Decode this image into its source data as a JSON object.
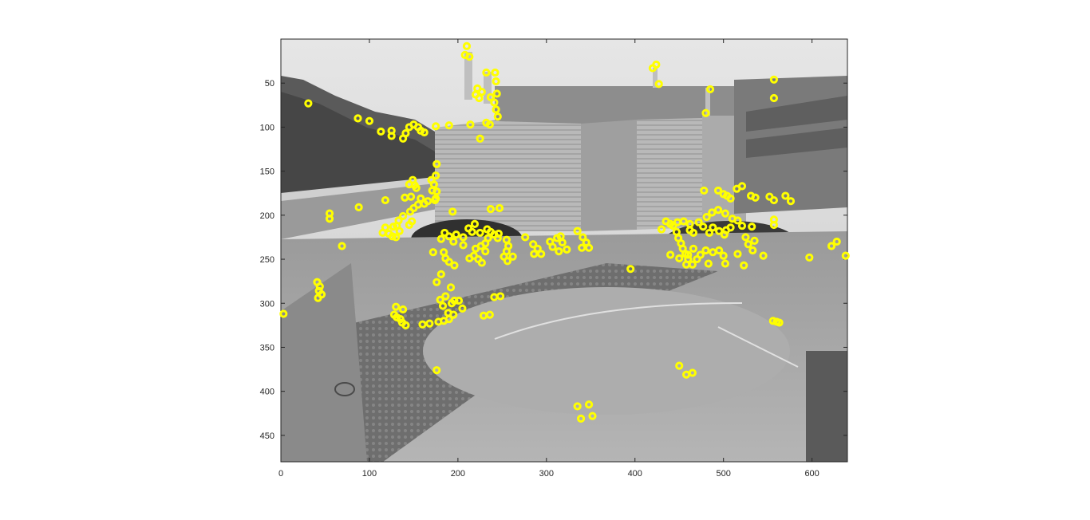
{
  "chart_data": {
    "type": "scatter",
    "title": "",
    "xlabel": "",
    "ylabel": "",
    "xlim": [
      0,
      640
    ],
    "ylim": [
      480,
      0
    ],
    "y_axis_reversed": true,
    "grid": false,
    "background": "grayscale camera image of a building facade, parking area and paved courtyard",
    "marker": {
      "shape": "circle-ring",
      "color": "#ffff00"
    },
    "x_ticks": [
      "0",
      "100",
      "200",
      "300",
      "400",
      "500",
      "600"
    ],
    "y_ticks": [
      "50",
      "100",
      "150",
      "200",
      "250",
      "300",
      "350",
      "400",
      "450"
    ],
    "points": [
      [
        31,
        73
      ],
      [
        87,
        90
      ],
      [
        100,
        93
      ],
      [
        113,
        105
      ],
      [
        125,
        104
      ],
      [
        125,
        110
      ],
      [
        138,
        113
      ],
      [
        141,
        107
      ],
      [
        145,
        100
      ],
      [
        150,
        97
      ],
      [
        155,
        100
      ],
      [
        158,
        104
      ],
      [
        162,
        106
      ],
      [
        175,
        99
      ],
      [
        190,
        98
      ],
      [
        210,
        8
      ],
      [
        208,
        18
      ],
      [
        213,
        20
      ],
      [
        232,
        38
      ],
      [
        242,
        38
      ],
      [
        222,
        56
      ],
      [
        220,
        63
      ],
      [
        227,
        60
      ],
      [
        224,
        67
      ],
      [
        237,
        66
      ],
      [
        244,
        62
      ],
      [
        243,
        48
      ],
      [
        241,
        72
      ],
      [
        243,
        80
      ],
      [
        245,
        88
      ],
      [
        236,
        97
      ],
      [
        214,
        97
      ],
      [
        232,
        95
      ],
      [
        225,
        113
      ],
      [
        176,
        142
      ],
      [
        175,
        155
      ],
      [
        170,
        160
      ],
      [
        173,
        165
      ],
      [
        176,
        173
      ],
      [
        175,
        181
      ],
      [
        171,
        172
      ],
      [
        149,
        160
      ],
      [
        145,
        165
      ],
      [
        151,
        166
      ],
      [
        153,
        169
      ],
      [
        140,
        180
      ],
      [
        147,
        179
      ],
      [
        158,
        181
      ],
      [
        166,
        184
      ],
      [
        162,
        187
      ],
      [
        155,
        188
      ],
      [
        150,
        192
      ],
      [
        146,
        196
      ],
      [
        138,
        201
      ],
      [
        133,
        206
      ],
      [
        131,
        212
      ],
      [
        127,
        213
      ],
      [
        118,
        214
      ],
      [
        115,
        220
      ],
      [
        122,
        221
      ],
      [
        126,
        224
      ],
      [
        130,
        225
      ],
      [
        134,
        218
      ],
      [
        118,
        183
      ],
      [
        88,
        191
      ],
      [
        55,
        198
      ],
      [
        55,
        204
      ],
      [
        69,
        235
      ],
      [
        145,
        211
      ],
      [
        148,
        207
      ],
      [
        174,
        183
      ],
      [
        194,
        196
      ],
      [
        181,
        227
      ],
      [
        185,
        220
      ],
      [
        190,
        224
      ],
      [
        198,
        222
      ],
      [
        206,
        225
      ],
      [
        212,
        215
      ],
      [
        219,
        210
      ],
      [
        216,
        219
      ],
      [
        225,
        220
      ],
      [
        233,
        216
      ],
      [
        237,
        219
      ],
      [
        241,
        222
      ],
      [
        246,
        221
      ],
      [
        234,
        226
      ],
      [
        231,
        232
      ],
      [
        226,
        235
      ],
      [
        220,
        238
      ],
      [
        218,
        246
      ],
      [
        223,
        250
      ],
      [
        227,
        254
      ],
      [
        213,
        249
      ],
      [
        206,
        234
      ],
      [
        195,
        230
      ],
      [
        184,
        242
      ],
      [
        186,
        249
      ],
      [
        190,
        253
      ],
      [
        196,
        257
      ],
      [
        172,
        242
      ],
      [
        181,
        267
      ],
      [
        231,
        241
      ],
      [
        245,
        226
      ],
      [
        255,
        228
      ],
      [
        257,
        235
      ],
      [
        255,
        241
      ],
      [
        252,
        247
      ],
      [
        256,
        252
      ],
      [
        262,
        247
      ],
      [
        276,
        225
      ],
      [
        285,
        233
      ],
      [
        290,
        238
      ],
      [
        286,
        244
      ],
      [
        294,
        244
      ],
      [
        304,
        230
      ],
      [
        307,
        236
      ],
      [
        312,
        226
      ],
      [
        316,
        224
      ],
      [
        318,
        231
      ],
      [
        323,
        239
      ],
      [
        314,
        241
      ],
      [
        335,
        218
      ],
      [
        341,
        225
      ],
      [
        345,
        231
      ],
      [
        340,
        237
      ],
      [
        348,
        237
      ],
      [
        237,
        193
      ],
      [
        247,
        192
      ],
      [
        176,
        276
      ],
      [
        192,
        282
      ],
      [
        186,
        292
      ],
      [
        180,
        296
      ],
      [
        183,
        303
      ],
      [
        193,
        300
      ],
      [
        196,
        297
      ],
      [
        201,
        297
      ],
      [
        205,
        306
      ],
      [
        189,
        311
      ],
      [
        195,
        313
      ],
      [
        190,
        318
      ],
      [
        184,
        320
      ],
      [
        178,
        321
      ],
      [
        168,
        323
      ],
      [
        160,
        324
      ],
      [
        141,
        325
      ],
      [
        137,
        322
      ],
      [
        135,
        318
      ],
      [
        131,
        316
      ],
      [
        128,
        313
      ],
      [
        138,
        307
      ],
      [
        130,
        304
      ],
      [
        241,
        293
      ],
      [
        248,
        292
      ],
      [
        229,
        314
      ],
      [
        236,
        313
      ],
      [
        176,
        376
      ],
      [
        3,
        312
      ],
      [
        41,
        276
      ],
      [
        44,
        281
      ],
      [
        43,
        286
      ],
      [
        46,
        290
      ],
      [
        42,
        294
      ],
      [
        395,
        261
      ],
      [
        420,
        33
      ],
      [
        424,
        29
      ],
      [
        427,
        51
      ],
      [
        485,
        57
      ],
      [
        480,
        84
      ],
      [
        557,
        46
      ],
      [
        557,
        67
      ],
      [
        478,
        172
      ],
      [
        494,
        172
      ],
      [
        500,
        176
      ],
      [
        504,
        178
      ],
      [
        508,
        181
      ],
      [
        515,
        170
      ],
      [
        521,
        167
      ],
      [
        531,
        178
      ],
      [
        536,
        180
      ],
      [
        552,
        179
      ],
      [
        557,
        183
      ],
      [
        570,
        178
      ],
      [
        576,
        184
      ],
      [
        557,
        205
      ],
      [
        557,
        211
      ],
      [
        481,
        202
      ],
      [
        487,
        197
      ],
      [
        494,
        194
      ],
      [
        502,
        198
      ],
      [
        510,
        204
      ],
      [
        516,
        206
      ],
      [
        521,
        212
      ],
      [
        508,
        214
      ],
      [
        503,
        217
      ],
      [
        501,
        222
      ],
      [
        495,
        218
      ],
      [
        488,
        214
      ],
      [
        484,
        220
      ],
      [
        477,
        213
      ],
      [
        472,
        208
      ],
      [
        466,
        220
      ],
      [
        462,
        217
      ],
      [
        462,
        210
      ],
      [
        455,
        207
      ],
      [
        448,
        208
      ],
      [
        440,
        210
      ],
      [
        435,
        207
      ],
      [
        430,
        216
      ],
      [
        443,
        212
      ],
      [
        447,
        219
      ],
      [
        449,
        226
      ],
      [
        452,
        232
      ],
      [
        454,
        238
      ],
      [
        457,
        244
      ],
      [
        460,
        250
      ],
      [
        458,
        256
      ],
      [
        465,
        256
      ],
      [
        470,
        250
      ],
      [
        474,
        245
      ],
      [
        480,
        240
      ],
      [
        483,
        255
      ],
      [
        488,
        242
      ],
      [
        495,
        240
      ],
      [
        500,
        246
      ],
      [
        502,
        255
      ],
      [
        516,
        244
      ],
      [
        525,
        225
      ],
      [
        528,
        233
      ],
      [
        533,
        240
      ],
      [
        535,
        229
      ],
      [
        545,
        246
      ],
      [
        532,
        213
      ],
      [
        523,
        257
      ],
      [
        450,
        249
      ],
      [
        440,
        245
      ],
      [
        460,
        245
      ],
      [
        466,
        238
      ],
      [
        597,
        248
      ],
      [
        622,
        235
      ],
      [
        628,
        230
      ],
      [
        638,
        246
      ],
      [
        556,
        320
      ],
      [
        560,
        321
      ],
      [
        563,
        322
      ],
      [
        450,
        371
      ],
      [
        458,
        381
      ],
      [
        465,
        379
      ],
      [
        335,
        417
      ],
      [
        339,
        431
      ],
      [
        348,
        415
      ],
      [
        352,
        428
      ]
    ]
  }
}
